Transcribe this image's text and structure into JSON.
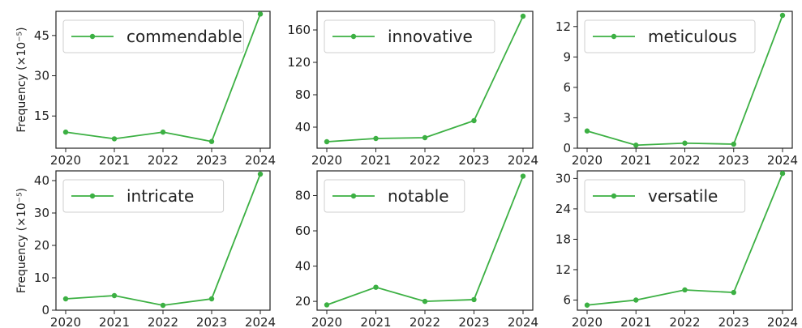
{
  "figure": {
    "ylabel_left": "Frequency (×10⁻⁵)",
    "line_color": "#3cb043"
  },
  "chart_data": [
    {
      "type": "line",
      "name": "commendable",
      "x": [
        "2020",
        "2021",
        "2022",
        "2023",
        "2024"
      ],
      "values": [
        9,
        6.5,
        9,
        5.5,
        53
      ],
      "ylim": [
        3,
        54
      ],
      "yticks": [
        15,
        30,
        45
      ],
      "ylabel": "Frequency (×10⁻⁵)",
      "legend": "top-left",
      "grid": false
    },
    {
      "type": "line",
      "name": "innovative",
      "x": [
        "2020",
        "2021",
        "2022",
        "2023",
        "2024"
      ],
      "values": [
        22,
        26,
        27,
        48,
        177
      ],
      "ylim": [
        14,
        183
      ],
      "yticks": [
        40,
        80,
        120,
        160
      ],
      "ylabel": "",
      "legend": "top-left",
      "grid": false
    },
    {
      "type": "line",
      "name": "meticulous",
      "x": [
        "2020",
        "2021",
        "2022",
        "2023",
        "2024"
      ],
      "values": [
        1.7,
        0.3,
        0.5,
        0.4,
        13.1
      ],
      "ylim": [
        0,
        13.5
      ],
      "yticks": [
        0,
        3,
        6,
        9,
        12
      ],
      "ylabel": "",
      "legend": "top-left",
      "grid": false
    },
    {
      "type": "line",
      "name": "intricate",
      "x": [
        "2020",
        "2021",
        "2022",
        "2023",
        "2024"
      ],
      "values": [
        3.5,
        4.5,
        1.5,
        3.5,
        42
      ],
      "ylim": [
        0,
        43
      ],
      "yticks": [
        0,
        10,
        20,
        30,
        40
      ],
      "ylabel": "Frequency (×10⁻⁵)",
      "legend": "top-left",
      "grid": false
    },
    {
      "type": "line",
      "name": "notable",
      "x": [
        "2020",
        "2021",
        "2022",
        "2023",
        "2024"
      ],
      "values": [
        18,
        28,
        20,
        21,
        91
      ],
      "ylim": [
        15,
        94
      ],
      "yticks": [
        20,
        40,
        60,
        80
      ],
      "ylabel": "",
      "legend": "top-left",
      "grid": false
    },
    {
      "type": "line",
      "name": "versatile",
      "x": [
        "2020",
        "2021",
        "2022",
        "2023",
        "2024"
      ],
      "values": [
        5,
        6,
        8,
        7.5,
        31
      ],
      "ylim": [
        4,
        31.5
      ],
      "yticks": [
        6,
        12,
        18,
        24,
        30
      ],
      "ylabel": "",
      "legend": "top-left",
      "grid": false
    }
  ]
}
